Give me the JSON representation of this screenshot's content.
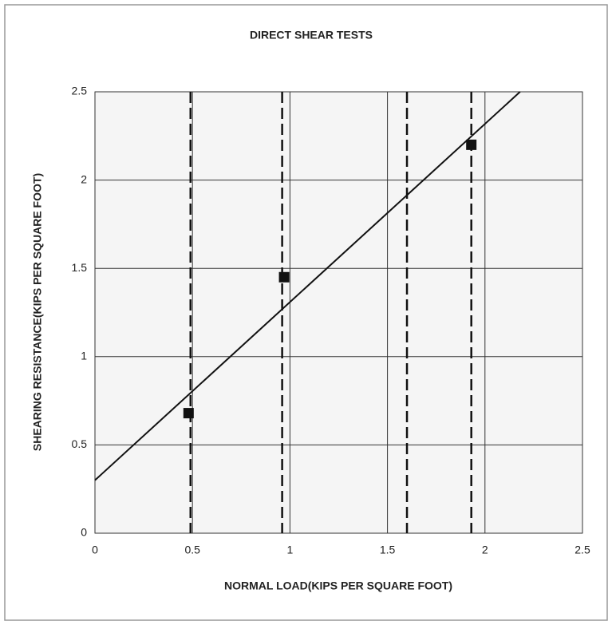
{
  "chart_data": {
    "type": "scatter",
    "title": "DIRECT SHEAR TESTS",
    "x_label": "NORMAL LOAD(KIPS PER SQUARE FOOT)",
    "y_label": "SHEARING RESISTANCE(KIPS PER SQUARE FOOT)",
    "xlim": [
      0,
      2.5
    ],
    "xticks": [
      0,
      0.5,
      1,
      1.5,
      2,
      2.5
    ],
    "ylim": [
      0,
      2.5
    ],
    "yticks": [
      0,
      0.5,
      1,
      1.5,
      2,
      2.5
    ],
    "grid": true,
    "series": [
      {
        "type": "scatter",
        "x": [
          0.48,
          0.97,
          1.93
        ],
        "values": [
          0.68,
          1.45,
          2.2
        ],
        "color": "#111111"
      },
      {
        "type": "line",
        "x": [
          0,
          2.18
        ],
        "values": [
          0.3,
          2.5
        ],
        "color": "#111111"
      }
    ],
    "vlines": {
      "x": [
        0.49,
        0.96,
        1.6,
        1.93
      ],
      "color": "#111111",
      "dashed": true
    }
  }
}
